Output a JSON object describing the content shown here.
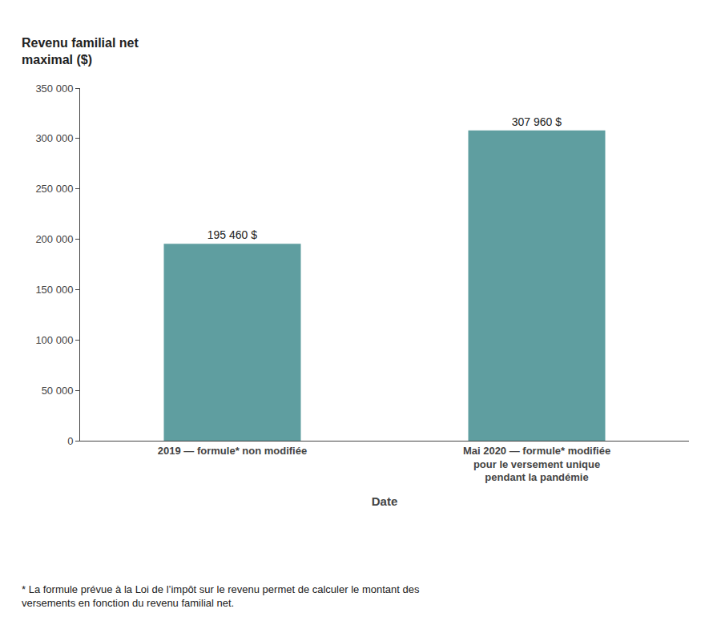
{
  "chart_data": {
    "type": "bar",
    "categories": [
      "2019 — formule* non modifiée",
      "Mai 2020 — formule* modifiée\npour le versement unique\npendant la pandémie"
    ],
    "values": [
      195460,
      307960
    ],
    "value_labels": [
      "195 460 $",
      "307 960 $"
    ],
    "data_labels": true,
    "color": "#5f9ea0",
    "xlabel": "Date",
    "ylabel": "Revenu familial net\nmaximal ($)",
    "ylim": [
      0,
      350000
    ],
    "yticks": [
      0,
      {
        "value": 50000,
        "label": "50 000"
      },
      {
        "value": 100000,
        "label": "100 000"
      },
      {
        "value": 150000,
        "label": "150 000"
      },
      {
        "value": 200000,
        "label": "200 000"
      },
      {
        "value": 250000,
        "label": "250 000"
      },
      {
        "value": 300000,
        "label": "300 000"
      },
      {
        "value": 350000,
        "label": "350 000"
      }
    ],
    "grid": false,
    "annotations": [
      "* La formule prévue à la Loi de l’impôt sur le revenu permet de calculer le montant des\nversements en fonction du revenu familial net."
    ]
  }
}
